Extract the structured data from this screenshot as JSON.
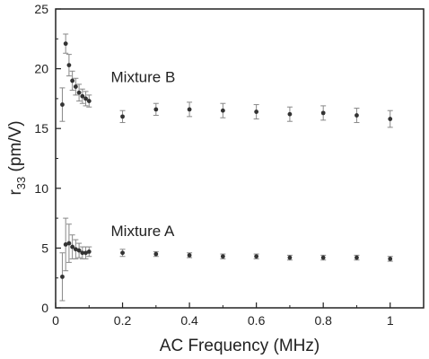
{
  "chart_data": {
    "type": "scatter",
    "title": "",
    "xlabel": "AC Frequency (MHz)",
    "ylabel": {
      "main": "r",
      "sub": "33",
      "rest": " (pm/V)"
    },
    "xlim": [
      0,
      1.1
    ],
    "ylim": [
      0,
      25
    ],
    "x_ticks": [
      0,
      0.2,
      0.4,
      0.6,
      0.8,
      1
    ],
    "x_tick_labels": [
      "0",
      "0.2",
      "0.4",
      "0.6",
      "0.8",
      "1"
    ],
    "y_ticks": [
      0,
      5,
      10,
      15,
      20,
      25
    ],
    "y_tick_labels": [
      "0",
      "5",
      "10",
      "15",
      "20",
      "25"
    ],
    "grid": false,
    "error_bars": true,
    "series": [
      {
        "name": "Mixture B",
        "color": "#333333",
        "points": [
          {
            "x": 0.02,
            "y": 17.0,
            "err": 1.4
          },
          {
            "x": 0.03,
            "y": 22.1,
            "err": 0.8
          },
          {
            "x": 0.04,
            "y": 20.3,
            "err": 0.9
          },
          {
            "x": 0.05,
            "y": 19.0,
            "err": 0.8
          },
          {
            "x": 0.06,
            "y": 18.5,
            "err": 0.7
          },
          {
            "x": 0.07,
            "y": 18.0,
            "err": 0.7
          },
          {
            "x": 0.08,
            "y": 17.7,
            "err": 0.6
          },
          {
            "x": 0.09,
            "y": 17.5,
            "err": 0.6
          },
          {
            "x": 0.1,
            "y": 17.3,
            "err": 0.5
          },
          {
            "x": 0.2,
            "y": 16.0,
            "err": 0.5
          },
          {
            "x": 0.3,
            "y": 16.6,
            "err": 0.5
          },
          {
            "x": 0.4,
            "y": 16.6,
            "err": 0.6
          },
          {
            "x": 0.5,
            "y": 16.5,
            "err": 0.6
          },
          {
            "x": 0.6,
            "y": 16.4,
            "err": 0.6
          },
          {
            "x": 0.7,
            "y": 16.2,
            "err": 0.6
          },
          {
            "x": 0.8,
            "y": 16.3,
            "err": 0.6
          },
          {
            "x": 0.9,
            "y": 16.1,
            "err": 0.6
          },
          {
            "x": 1.0,
            "y": 15.8,
            "err": 0.7
          }
        ]
      },
      {
        "name": "Mixture A",
        "color": "#333333",
        "points": [
          {
            "x": 0.02,
            "y": 2.6,
            "err": 2.0
          },
          {
            "x": 0.03,
            "y": 5.3,
            "err": 2.2
          },
          {
            "x": 0.04,
            "y": 5.4,
            "err": 1.6
          },
          {
            "x": 0.05,
            "y": 5.1,
            "err": 1.0
          },
          {
            "x": 0.06,
            "y": 4.9,
            "err": 0.8
          },
          {
            "x": 0.07,
            "y": 4.8,
            "err": 0.6
          },
          {
            "x": 0.08,
            "y": 4.6,
            "err": 0.5
          },
          {
            "x": 0.09,
            "y": 4.6,
            "err": 0.5
          },
          {
            "x": 0.1,
            "y": 4.7,
            "err": 0.4
          },
          {
            "x": 0.2,
            "y": 4.6,
            "err": 0.3
          },
          {
            "x": 0.3,
            "y": 4.5,
            "err": 0.2
          },
          {
            "x": 0.4,
            "y": 4.4,
            "err": 0.2
          },
          {
            "x": 0.5,
            "y": 4.3,
            "err": 0.2
          },
          {
            "x": 0.6,
            "y": 4.3,
            "err": 0.2
          },
          {
            "x": 0.7,
            "y": 4.2,
            "err": 0.2
          },
          {
            "x": 0.8,
            "y": 4.2,
            "err": 0.2
          },
          {
            "x": 0.9,
            "y": 4.2,
            "err": 0.2
          },
          {
            "x": 1.0,
            "y": 4.1,
            "err": 0.2
          }
        ]
      }
    ],
    "annotations": [
      {
        "text": "Mixture B",
        "x": 0.165,
        "y": 18.9
      },
      {
        "text": "Mixture A",
        "x": 0.165,
        "y": 6.0
      }
    ]
  }
}
